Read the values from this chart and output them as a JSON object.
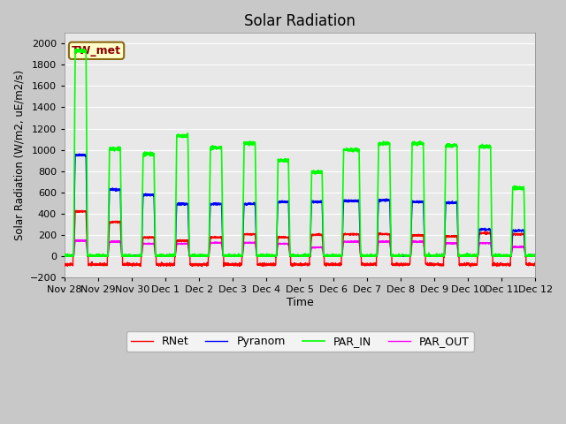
{
  "title": "Solar Radiation",
  "ylabel": "Solar Radiation (W/m2, uE/m2/s)",
  "xlabel": "Time",
  "ylim": [
    -200,
    2100
  ],
  "yticks": [
    -200,
    0,
    200,
    400,
    600,
    800,
    1000,
    1200,
    1400,
    1600,
    1800,
    2000
  ],
  "line_colors": {
    "RNet": "#ff0000",
    "Pyranom": "#0000ff",
    "PAR_IN": "#00ff00",
    "PAR_OUT": "#ff00ff"
  },
  "line_widths": {
    "RNet": 1.0,
    "Pyranom": 1.0,
    "PAR_IN": 1.2,
    "PAR_OUT": 1.0
  },
  "annotation_text": "TW_met",
  "x_tick_labels": [
    "Nov 28",
    "Nov 29",
    "Nov 30",
    "Dec 1",
    "Dec 2",
    "Dec 3",
    "Dec 4",
    "Dec 5",
    "Dec 6",
    "Dec 7",
    "Dec 8",
    "Dec 9",
    "Dec 10",
    "Dec 11",
    "Dec 12"
  ],
  "x_tick_positions": [
    0,
    1,
    2,
    3,
    4,
    5,
    6,
    7,
    8,
    9,
    10,
    11,
    12,
    13,
    14
  ],
  "figsize": [
    6.4,
    4.8
  ],
  "dpi": 100
}
